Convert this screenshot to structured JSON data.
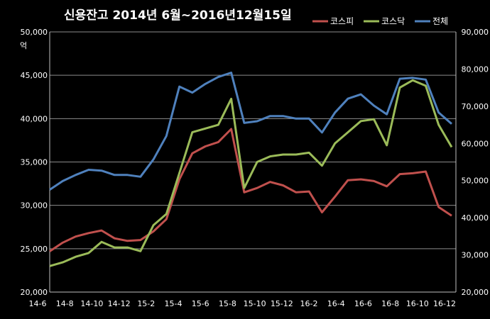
{
  "chart_data": {
    "type": "line",
    "title": "신용잔고 2014년 6월~2016년12월15일",
    "y_unit_label": "억",
    "x_tick_labels": [
      "14-6",
      "14-8",
      "14-10",
      "14-12",
      "15-2",
      "15-4",
      "15-6",
      "15-8",
      "15-10",
      "15-12",
      "16-2",
      "16-4",
      "16-6",
      "16-8",
      "16-10",
      "16-12"
    ],
    "left_axis": {
      "ylim": [
        20000,
        50000
      ],
      "ticks": [
        "20,000",
        "25,000",
        "30,000",
        "35,000",
        "40,000",
        "45,000",
        "50,000"
      ]
    },
    "right_axis": {
      "ylim": [
        20000,
        90000
      ],
      "ticks": [
        "20,000",
        "30,000",
        "40,000",
        "50,000",
        "60,000",
        "70,000",
        "80,000",
        "90,000"
      ]
    },
    "grid": true,
    "legend_position": "top-right",
    "series": [
      {
        "name": "코스피",
        "color": "#c0504d",
        "axis": "left",
        "x": [
          "14-6",
          "14-7",
          "14-8",
          "14-9",
          "14-10",
          "14-11",
          "14-12",
          "15-1",
          "15-2",
          "15-3",
          "15-4",
          "15-5",
          "15-6",
          "15-7",
          "15-7b",
          "15-8",
          "15-9",
          "15-10",
          "15-11",
          "15-12",
          "16-1",
          "16-2",
          "16-3",
          "16-4",
          "16-5",
          "16-6",
          "16-7",
          "16-8",
          "16-9",
          "16-10",
          "16-11",
          "16-12"
        ],
        "values": [
          24700,
          25700,
          26400,
          26800,
          27100,
          26200,
          25900,
          26000,
          27000,
          28400,
          33000,
          36000,
          36800,
          37300,
          38800,
          31500,
          32000,
          32700,
          32300,
          31500,
          31600,
          29200,
          31000,
          32900,
          33000,
          32800,
          32200,
          33600,
          33700,
          33900,
          29800,
          28800
        ]
      },
      {
        "name": "코스닥",
        "color": "#9bbb59",
        "axis": "right",
        "x": [
          "14-6",
          "14-7",
          "14-8",
          "14-9",
          "14-10",
          "14-11",
          "14-12",
          "15-1",
          "15-2",
          "15-3",
          "15-4",
          "15-5",
          "15-6",
          "15-7",
          "15-7b",
          "15-8",
          "15-9",
          "15-10",
          "15-11",
          "15-12",
          "16-1",
          "16-2",
          "16-3",
          "16-4",
          "16-5",
          "16-6",
          "16-7",
          "16-8",
          "16-9",
          "16-10",
          "16-11",
          "16-12"
        ],
        "values": [
          27000,
          28000,
          29500,
          30500,
          33500,
          32000,
          32000,
          31000,
          38000,
          41000,
          52000,
          63000,
          64000,
          65000,
          72000,
          48000,
          55000,
          56500,
          57000,
          57000,
          57500,
          54000,
          60000,
          63000,
          66000,
          66500,
          59500,
          75000,
          77000,
          75500,
          65000,
          59000
        ]
      },
      {
        "name": "전체",
        "color": "#4f81bd",
        "axis": "left",
        "x": [
          "14-6",
          "14-7",
          "14-8",
          "14-9",
          "14-10",
          "14-11",
          "14-12",
          "15-1",
          "15-2",
          "15-3",
          "15-4",
          "15-5",
          "15-6",
          "15-7",
          "15-7b",
          "15-8",
          "15-9",
          "15-10",
          "15-11",
          "15-12",
          "16-1",
          "16-2",
          "16-3",
          "16-4",
          "16-5",
          "16-6",
          "16-7",
          "16-8",
          "16-9",
          "16-10",
          "16-11",
          "16-12"
        ],
        "values": [
          31800,
          32800,
          33500,
          34100,
          34000,
          33500,
          33500,
          33300,
          35300,
          38000,
          43700,
          43000,
          44000,
          44800,
          45300,
          39500,
          39700,
          40300,
          40300,
          40000,
          40000,
          38400,
          40700,
          42300,
          42800,
          41500,
          40500,
          44600,
          44700,
          44500,
          40700,
          39400
        ]
      }
    ]
  }
}
